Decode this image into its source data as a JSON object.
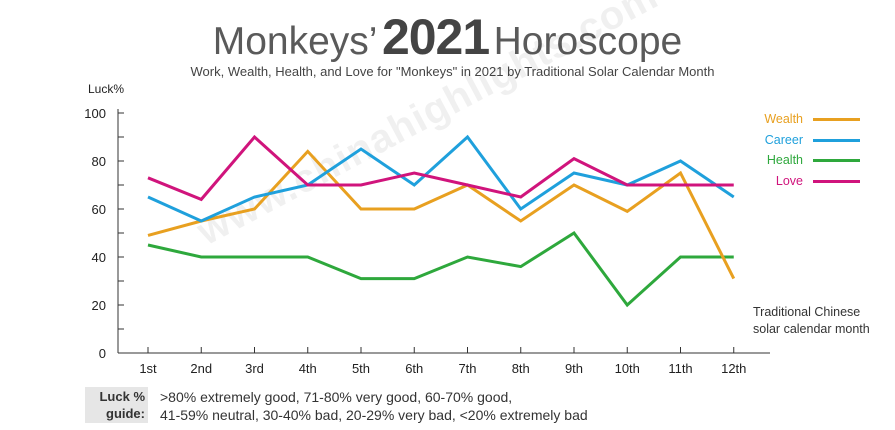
{
  "title": {
    "prefix": "Monkeys’",
    "year": "2021",
    "suffix": "Horoscope"
  },
  "subtitle": "Work, Wealth, Health, and Love for \"Monkeys\" in 2021 by Traditional Solar Calendar Month",
  "watermark": "www.chinahighlights.com",
  "guide": {
    "key_line1": "Luck %",
    "key_line2": "guide:",
    "line1": ">80% extremely good, 71-80% very good, 60-70% good,",
    "line2": "41-59% neutral, 30-40% bad, 20-29% very bad, <20% extremely bad"
  },
  "xaxis_note": {
    "line1": "Traditional Chinese",
    "line2": "solar calendar month"
  },
  "chart_data": {
    "type": "line",
    "title": "Monkeys’ 2021 Horoscope",
    "ylabel": "Luck%",
    "xlabel": "Traditional Chinese solar calendar month",
    "ylim": [
      0,
      100
    ],
    "yticks": [
      0,
      20,
      40,
      60,
      80,
      100
    ],
    "categories": [
      "1st",
      "2nd",
      "3rd",
      "4th",
      "5th",
      "6th",
      "7th",
      "8th",
      "9th",
      "10th",
      "11th",
      "12th"
    ],
    "legend_position": "top-right",
    "grid": false,
    "series": [
      {
        "name": "Wealth",
        "color": "#e8a020",
        "values": [
          49,
          55,
          60,
          84,
          60,
          60,
          70,
          55,
          70,
          59,
          75,
          31
        ]
      },
      {
        "name": "Career",
        "color": "#1fa0dc",
        "values": [
          65,
          55,
          65,
          70,
          85,
          70,
          90,
          60,
          75,
          70,
          80,
          65
        ]
      },
      {
        "name": "Health",
        "color": "#2ea83c",
        "values": [
          45,
          40,
          40,
          40,
          31,
          31,
          40,
          36,
          50,
          20,
          40,
          40
        ]
      },
      {
        "name": "Love",
        "color": "#d0147c",
        "values": [
          73,
          64,
          90,
          70,
          70,
          75,
          70,
          65,
          81,
          70,
          70,
          70
        ]
      }
    ]
  }
}
